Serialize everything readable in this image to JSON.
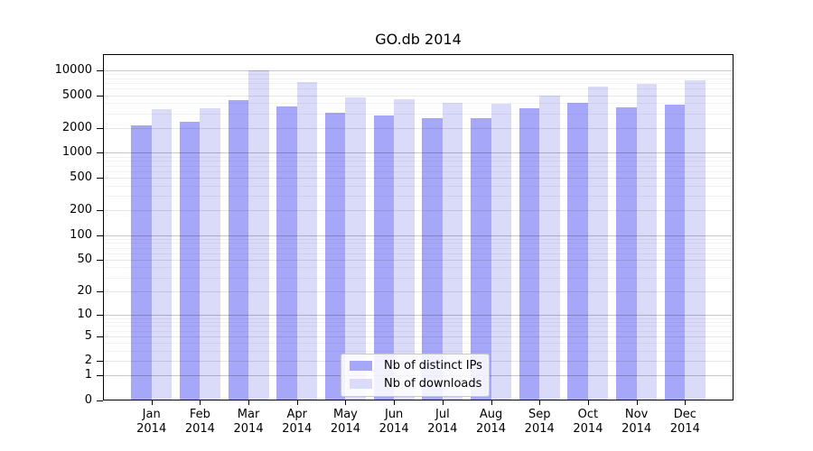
{
  "title": "GO.db 2014",
  "colors": {
    "distinct_ips_bar": "#a7a7f9",
    "downloads_bar": "#dadaf9",
    "axis": "#000000",
    "gridline_major": "#c7c7c7",
    "gridline_minor": "#f0f0f0",
    "legend_background": "#ffffff",
    "legend_border": "#c9c9c9"
  },
  "chart_data": {
    "type": "bar",
    "title": "GO.db 2014",
    "scale": "log1p",
    "grid": "on",
    "legend_position": "bottom-center",
    "categories": [
      "Jan",
      "Feb",
      "Mar",
      "Apr",
      "May",
      "Jun",
      "Jul",
      "Aug",
      "Sep",
      "Oct",
      "Nov",
      "Dec"
    ],
    "year_label": "2014",
    "series": [
      {
        "name": "Nb of distinct IPs",
        "color": "#a7a7f9",
        "values": [
          2150,
          2380,
          4370,
          3630,
          3040,
          2830,
          2650,
          2620,
          3470,
          4000,
          3560,
          3840
        ]
      },
      {
        "name": "Nb of downloads",
        "color": "#dadaf9",
        "values": [
          3400,
          3500,
          9900,
          7230,
          4750,
          4500,
          4000,
          3900,
          5000,
          6420,
          6920,
          7600
        ]
      }
    ],
    "y_ticks": [
      0,
      1,
      2,
      5,
      10,
      20,
      50,
      100,
      200,
      500,
      1000,
      2000,
      5000,
      10000
    ],
    "y_minor_decades": [
      1,
      10,
      100,
      1000
    ],
    "y_minor_multipliers": [
      3,
      4,
      6,
      7,
      8,
      9
    ],
    "ylim": [
      0,
      10000
    ],
    "xlabel": "",
    "ylabel": ""
  }
}
